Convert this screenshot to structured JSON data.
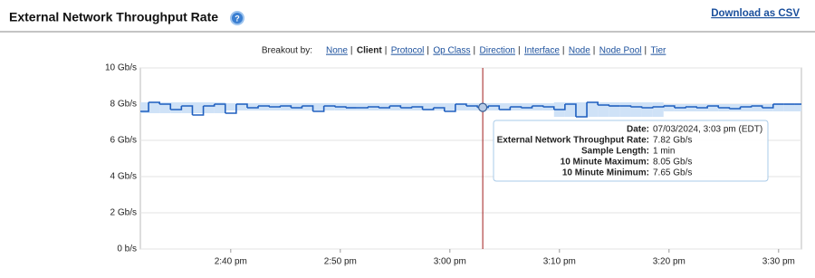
{
  "header": {
    "title": "External Network Throughput Rate",
    "link": "Download as CSV"
  },
  "breakout": {
    "label": "Breakout by:",
    "options": [
      "None",
      "Client",
      "Protocol",
      "Op Class",
      "Direction",
      "Interface",
      "Node",
      "Node Pool",
      "Tier"
    ],
    "selected": 1
  },
  "chart_data": {
    "type": "step",
    "categories": [
      null,
      null,
      null,
      null,
      null,
      null,
      null,
      null,
      "2:40 pm",
      null,
      null,
      null,
      null,
      null,
      null,
      null,
      null,
      null,
      "2:50 pm",
      null,
      null,
      null,
      null,
      null,
      null,
      null,
      null,
      null,
      "3:00 pm",
      null,
      null,
      null,
      null,
      null,
      null,
      null,
      null,
      null,
      "3:10 pm",
      null,
      null,
      null,
      null,
      null,
      null,
      null,
      null,
      null,
      "3:20 pm",
      null,
      null,
      null,
      null,
      null,
      null,
      null,
      null,
      null,
      "3:30 pm",
      null,
      null
    ],
    "values": [
      7.6,
      8.1,
      8.0,
      7.7,
      7.9,
      7.4,
      7.9,
      8.0,
      7.5,
      8.0,
      7.8,
      7.9,
      7.85,
      7.9,
      7.8,
      7.9,
      7.6,
      7.9,
      7.85,
      7.8,
      7.8,
      7.85,
      7.8,
      7.9,
      7.8,
      7.85,
      7.7,
      7.8,
      7.6,
      8.0,
      7.9,
      7.82,
      7.9,
      7.7,
      7.85,
      7.8,
      7.9,
      7.85,
      7.7,
      8.0,
      7.3,
      8.1,
      7.95,
      7.9,
      7.9,
      7.85,
      7.8,
      7.85,
      7.9,
      7.8,
      7.85,
      7.8,
      7.9,
      7.8,
      7.75,
      7.85,
      7.9,
      7.8,
      8.0,
      8.0,
      8.0
    ],
    "band_min": [
      7.5,
      7.5,
      7.5,
      7.5,
      7.5,
      7.5,
      7.5,
      7.5,
      7.65,
      7.65,
      7.65,
      7.65,
      7.65,
      7.65,
      7.65,
      7.65,
      7.65,
      7.65,
      7.65,
      7.65,
      7.65,
      7.65,
      7.65,
      7.65,
      7.65,
      7.65,
      7.65,
      7.65,
      7.65,
      7.65,
      7.65,
      7.65,
      7.65,
      7.65,
      7.65,
      7.65,
      7.65,
      7.65,
      7.3,
      7.3,
      7.3,
      7.3,
      7.3,
      7.3,
      7.3,
      7.3,
      7.3,
      7.3,
      7.6,
      7.6,
      7.6,
      7.6,
      7.6,
      7.6,
      7.6,
      7.6,
      7.6,
      7.6,
      7.6,
      7.6,
      7.6
    ],
    "band_max": [
      8.1,
      8.1,
      8.1,
      8.1,
      8.1,
      8.1,
      8.1,
      8.1,
      8.05,
      8.05,
      8.05,
      8.05,
      8.05,
      8.05,
      8.05,
      8.05,
      8.05,
      8.05,
      8.05,
      8.05,
      8.05,
      8.05,
      8.05,
      8.05,
      8.05,
      8.05,
      8.05,
      8.05,
      8.05,
      8.05,
      8.05,
      8.05,
      8.05,
      8.05,
      8.05,
      8.05,
      8.05,
      8.05,
      8.1,
      8.1,
      8.1,
      8.1,
      8.1,
      8.1,
      8.1,
      8.1,
      8.1,
      8.1,
      8.0,
      8.0,
      8.0,
      8.0,
      8.0,
      8.0,
      8.0,
      8.0,
      8.0,
      8.0,
      8.0,
      8.0,
      8.0
    ],
    "color": "#1f5fbf",
    "band_color": "#cfe2f7",
    "cursor_color": "#a11b1b",
    "highlight": 31,
    "ylim": [
      0,
      10
    ],
    "yticks": [
      {
        "value": 0,
        "label": "0 b/s"
      },
      {
        "value": 2,
        "label": "2 Gb/s"
      },
      {
        "value": 4,
        "label": "4 Gb/s"
      },
      {
        "value": 6,
        "label": "6 Gb/s"
      },
      {
        "value": 8,
        "label": "8 Gb/s"
      },
      {
        "value": 10,
        "label": "10 Gb/s"
      }
    ],
    "grid": true,
    "tooltip": [
      {
        "label": "Date:",
        "value": "07/03/2024, 3:03 pm (EDT)"
      },
      {
        "label": "External Network Throughput Rate:",
        "value": "7.82 Gb/s"
      },
      {
        "label": "Sample Length:",
        "value": "1 min"
      },
      {
        "label": "10 Minute Maximum:",
        "value": "8.05 Gb/s"
      },
      {
        "label": "10 Minute Minimum:",
        "value": "7.65 Gb/s"
      }
    ]
  }
}
